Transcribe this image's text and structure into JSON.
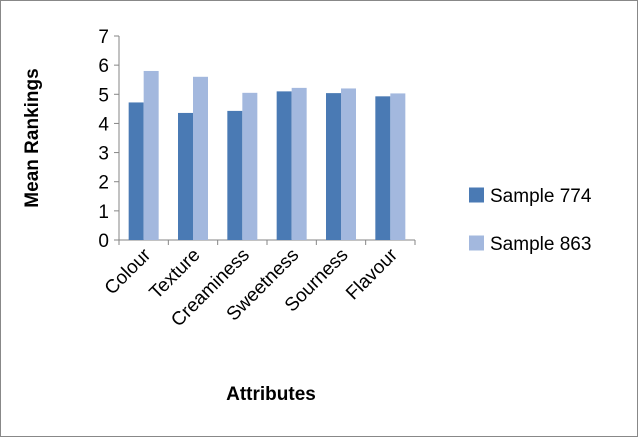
{
  "chart_data": {
    "type": "bar",
    "categories": [
      "Colour",
      "Texture",
      "Creaminess",
      "Sweetness",
      "Sourness",
      "Flavour"
    ],
    "series": [
      {
        "name": "Sample 774",
        "values": [
          4.72,
          4.36,
          4.43,
          5.1,
          5.04,
          4.93
        ],
        "color": "#4a7ab4"
      },
      {
        "name": "Sample 863",
        "values": [
          5.8,
          5.6,
          5.05,
          5.22,
          5.2,
          5.03
        ],
        "color": "#a3b8de"
      }
    ],
    "xlabel": "Attributes",
    "ylabel": "Mean Rankings",
    "ylim": [
      0,
      7
    ],
    "yticks": [
      0,
      1,
      2,
      3,
      4,
      5,
      6,
      7
    ],
    "grid": false,
    "legend_position": "right"
  }
}
